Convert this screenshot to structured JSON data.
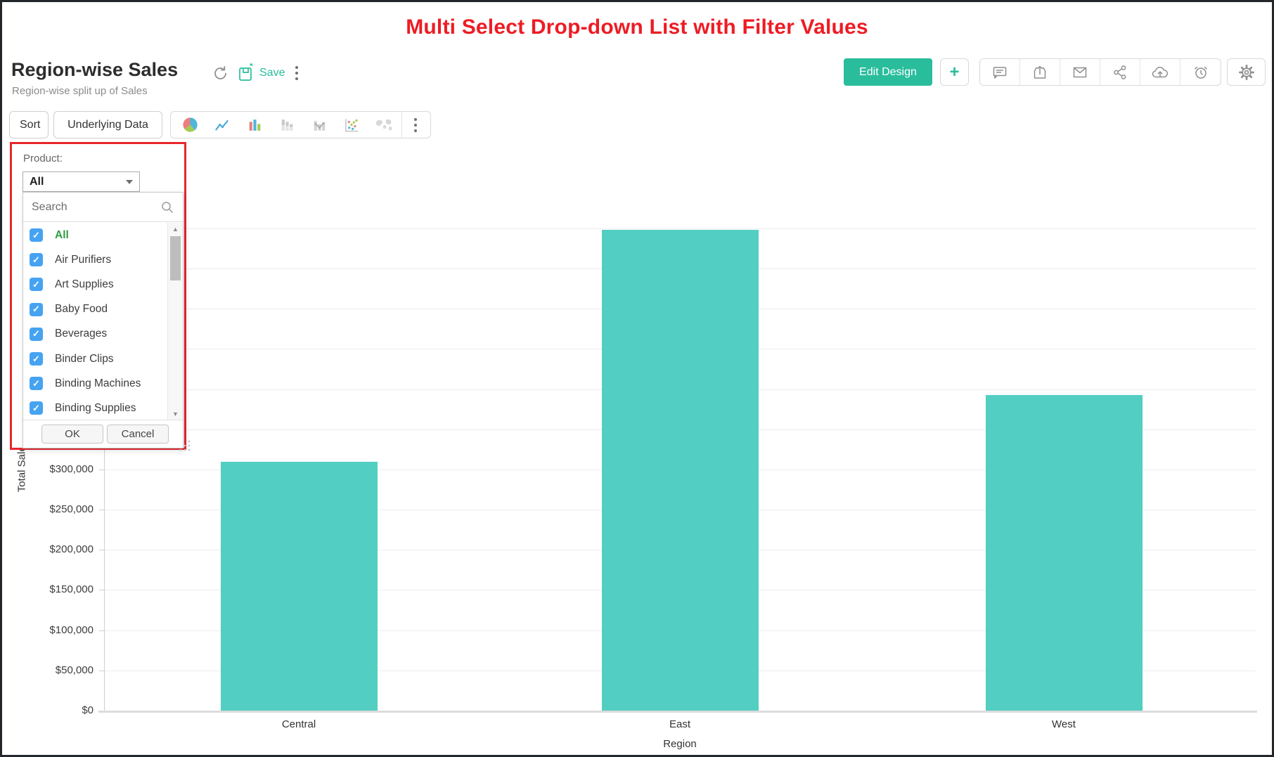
{
  "annotation": {
    "title": "Multi Select Drop-down List with Filter Values"
  },
  "header": {
    "title": "Region-wise Sales",
    "subtitle": "Region-wise split up of Sales",
    "save_label": "Save",
    "edit_design_label": "Edit Design",
    "add_label": "+",
    "action_icons": [
      "refresh-icon",
      "save-icon",
      "more-vertical-icon",
      "comment-icon",
      "export-icon",
      "email-icon",
      "share-icon",
      "cloud-upload-icon",
      "reminder-icon",
      "gear-icon"
    ]
  },
  "toolbar": {
    "sort_label": "Sort",
    "underlying_data_label": "Underlying Data",
    "chart_type_icons": [
      "pie-chart-icon",
      "line-chart-icon",
      "bar-chart-icon",
      "stacked-bar-icon",
      "combo-chart-icon",
      "scatter-chart-icon",
      "map-chart-icon",
      "more-vertical-icon"
    ]
  },
  "filter": {
    "label": "Product:",
    "selected_value": "All",
    "search_placeholder": "Search",
    "ok_label": "OK",
    "cancel_label": "Cancel",
    "options": [
      {
        "label": "All",
        "checked": true,
        "highlight": true
      },
      {
        "label": "Air Purifiers",
        "checked": true,
        "highlight": false
      },
      {
        "label": "Art Supplies",
        "checked": true,
        "highlight": false
      },
      {
        "label": "Baby Food",
        "checked": true,
        "highlight": false
      },
      {
        "label": "Beverages",
        "checked": true,
        "highlight": false
      },
      {
        "label": "Binder Clips",
        "checked": true,
        "highlight": false
      },
      {
        "label": "Binding Machines",
        "checked": true,
        "highlight": false
      },
      {
        "label": "Binding Supplies",
        "checked": true,
        "highlight": false
      }
    ]
  },
  "chart_data": {
    "type": "bar",
    "title": "Region-wise Sales",
    "categories": [
      "Central",
      "East",
      "West"
    ],
    "values": [
      310000,
      598000,
      393000
    ],
    "xlabel": "Region",
    "ylabel": "Total Sales",
    "ylim": [
      0,
      600000
    ],
    "ytick_step": 50000,
    "ytick_prefix": "$",
    "visible_ytick_labels": [
      "$300,000",
      "$250,000",
      "$200,000",
      "$150,000",
      "$100,000",
      "$50,000",
      "$0"
    ],
    "grid": true,
    "legend": "none"
  },
  "colors": {
    "accent_teal": "#29bd9c",
    "bar_fill": "#53cec2",
    "annotation_red": "#ed1c24",
    "annotation_box_red": "#e8262d",
    "checkbox_blue": "#46a3f2",
    "all_option_green": "#2f9e44",
    "icon_gray": "#8f8f8f"
  }
}
